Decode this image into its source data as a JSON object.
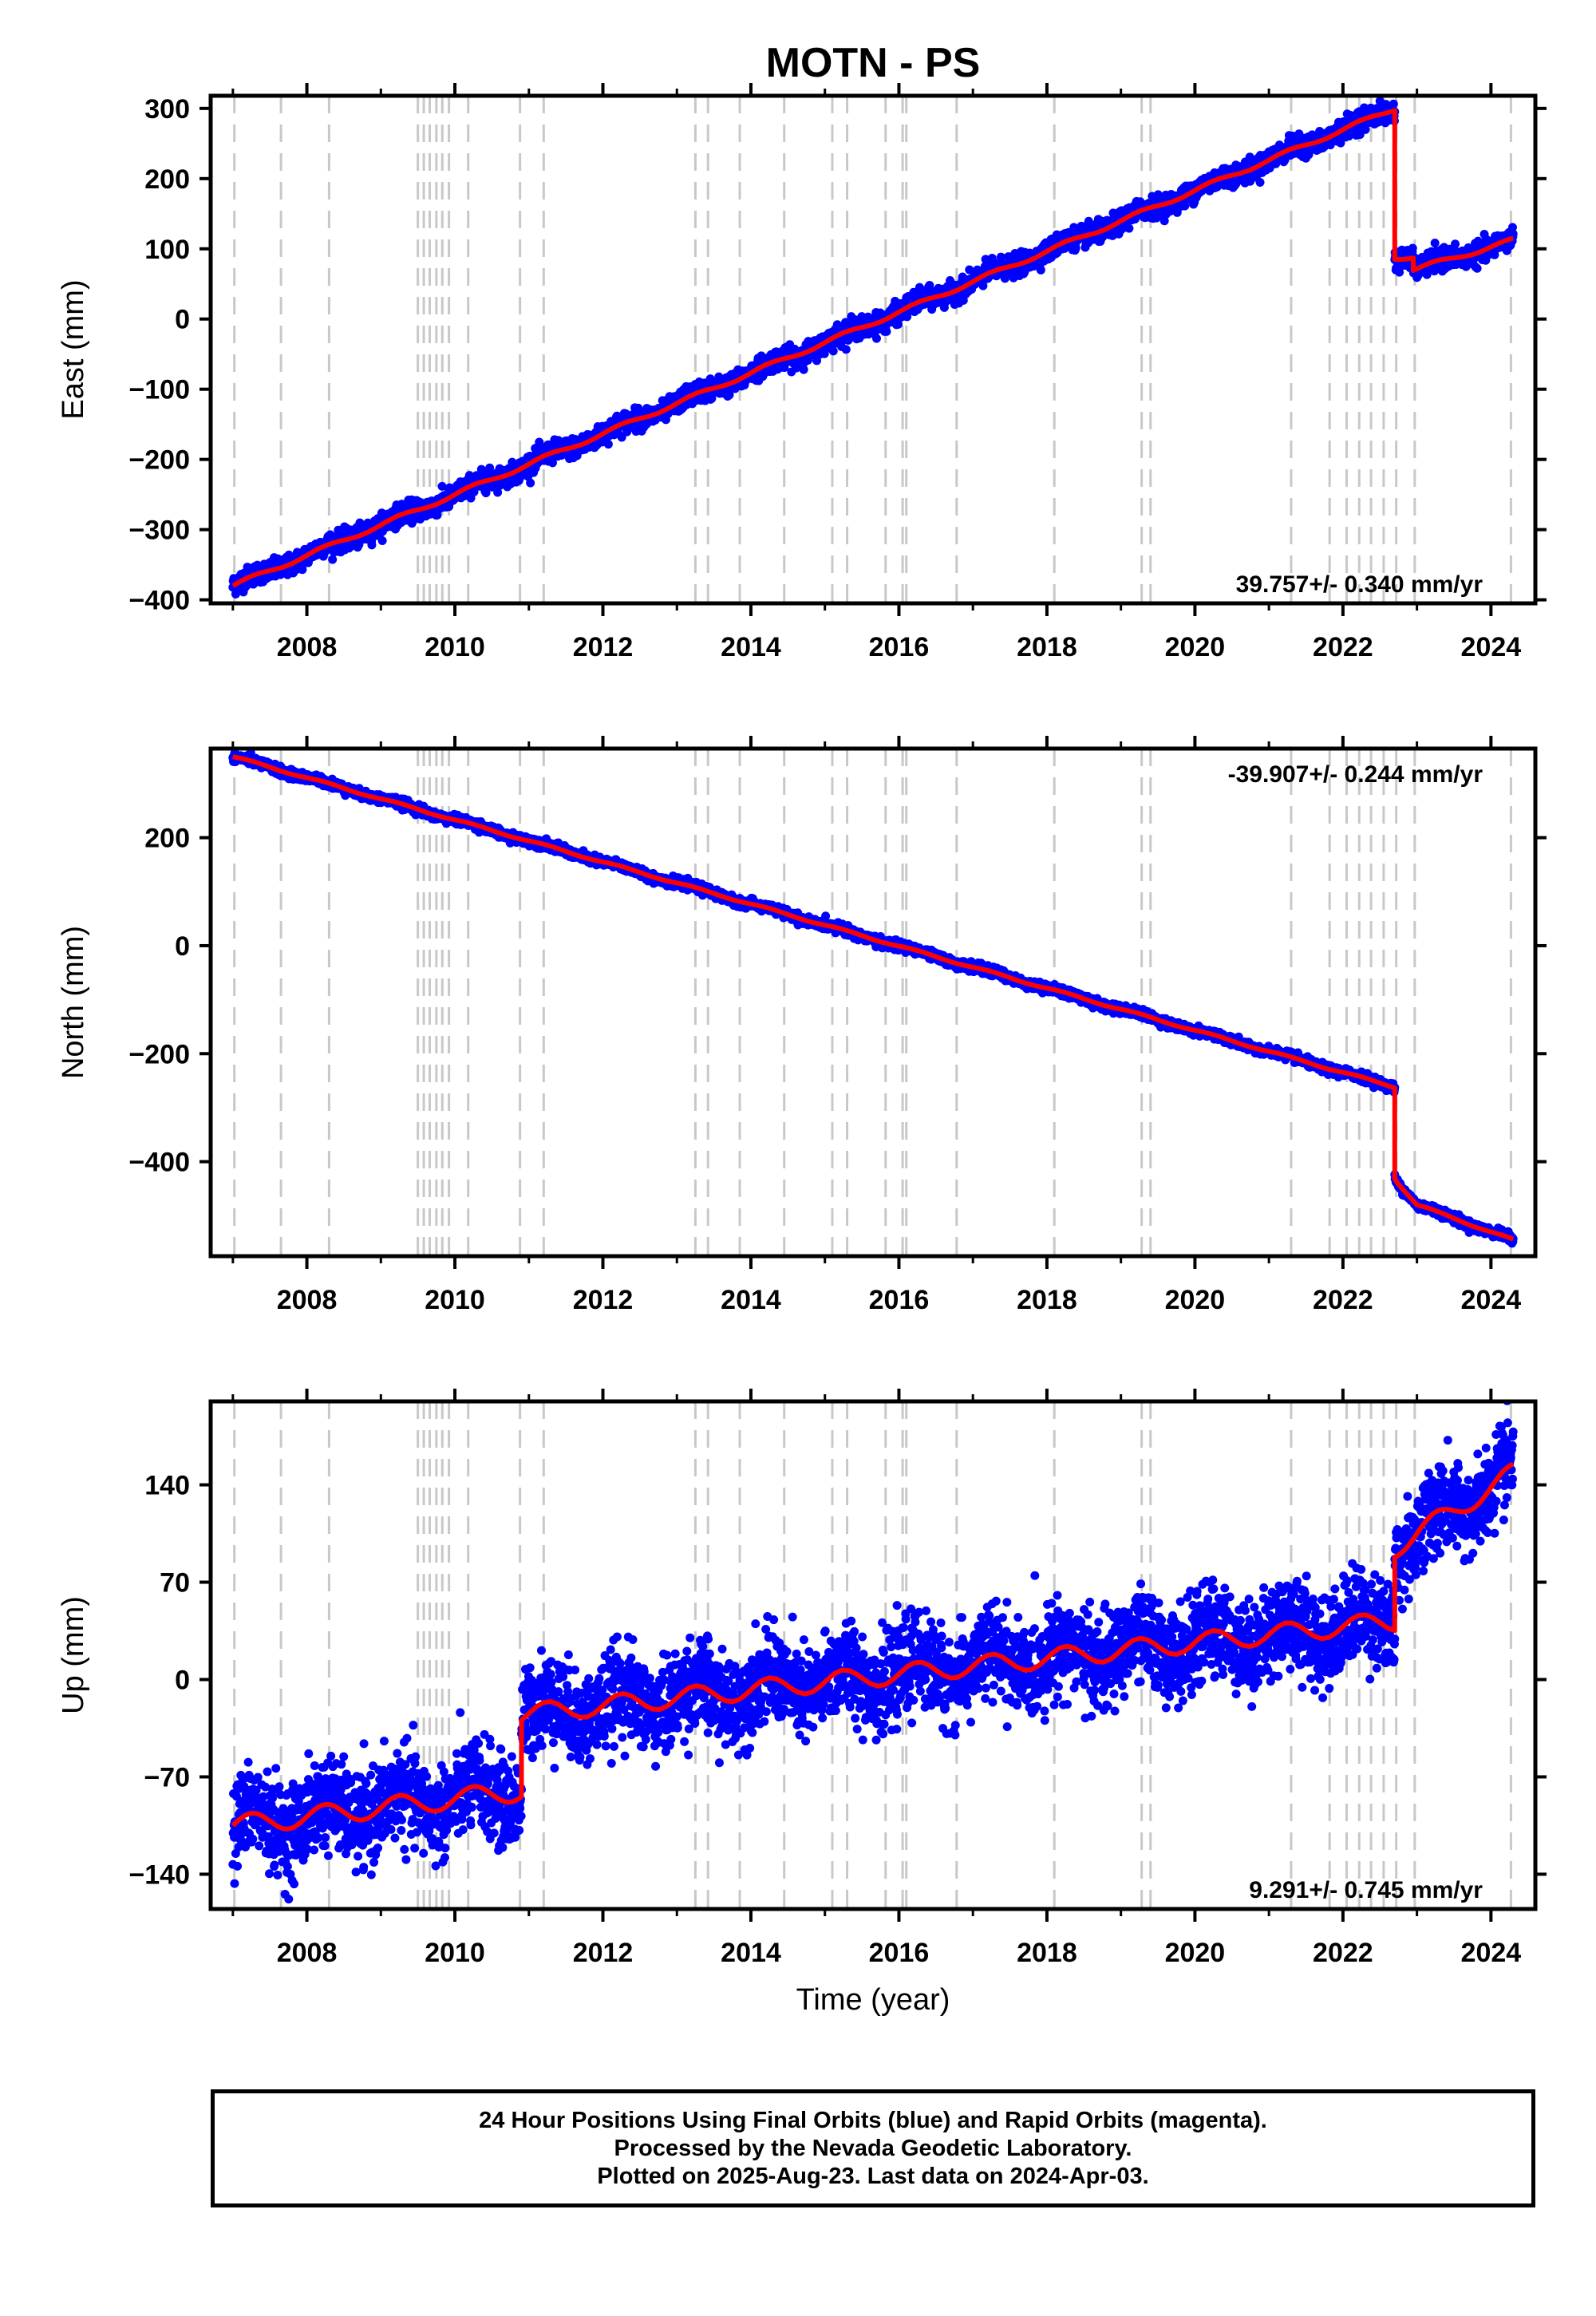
{
  "title": "MOTN - PS",
  "xlabel": "Time (year)",
  "colors": {
    "points": "#0000ff",
    "model": "#ff0000",
    "events": "#c8c8c8",
    "axis": "#000000"
  },
  "chart_data": [
    {
      "type": "scatter",
      "ylabel": "East (mm)",
      "rate_label": "39.757+/- 0.340 mm/yr",
      "xlim": [
        2006.7,
        2024.6
      ],
      "ylim": [
        -405,
        318
      ],
      "yticks": [
        300,
        200,
        100,
        0,
        -100,
        -200,
        -300,
        -400
      ],
      "yticklabels": [
        "300",
        "200",
        "100",
        "0",
        "−100",
        "−200",
        "−300",
        "−400"
      ],
      "xticks": [
        2008,
        2010,
        2012,
        2014,
        2016,
        2018,
        2020,
        2022,
        2024
      ],
      "xticklabels": [
        "2008",
        "2010",
        "2012",
        "2014",
        "2016",
        "2018",
        "2020",
        "2022",
        "2024"
      ],
      "model_breaks": [
        {
          "x": [
            2007.0,
            2022.7
          ],
          "y": [
            -380,
            300
          ]
        },
        {
          "x": [
            2022.7,
            2022.95
          ],
          "y": [
            88,
            88
          ]
        },
        {
          "x": [
            2022.95,
            2024.3
          ],
          "y": [
            70,
            112
          ]
        }
      ],
      "scatter_noise": 7
    },
    {
      "type": "scatter",
      "ylabel": "North (mm)",
      "rate_label": "-39.907+/- 0.244 mm/yr",
      "xlim": [
        2006.7,
        2024.6
      ],
      "ylim": [
        -575,
        365
      ],
      "yticks": [
        200,
        0,
        -200,
        -400
      ],
      "yticklabels": [
        "200",
        "0",
        "−200",
        "−400"
      ],
      "xticks": [
        2008,
        2010,
        2012,
        2014,
        2016,
        2018,
        2020,
        2022,
        2024
      ],
      "xticklabels": [
        "2008",
        "2010",
        "2012",
        "2014",
        "2016",
        "2018",
        "2020",
        "2022",
        "2024"
      ],
      "model_breaks": [
        {
          "x": [
            2007.0,
            2022.7
          ],
          "y": [
            350,
            -262
          ]
        },
        {
          "x": [
            2022.7,
            2022.75
          ],
          "y": [
            -430,
            -440
          ]
        },
        {
          "x": [
            2022.75,
            2023.0
          ],
          "y": [
            -440,
            -480
          ]
        },
        {
          "x": [
            2023.0,
            2024.3
          ],
          "y": [
            -480,
            -545
          ]
        }
      ],
      "scatter_noise": 4
    },
    {
      "type": "scatter",
      "ylabel": "Up (mm)",
      "rate_label": "9.291+/- 0.745 mm/yr",
      "xlim": [
        2006.7,
        2024.6
      ],
      "ylim": [
        -165,
        200
      ],
      "yticks": [
        140,
        70,
        0,
        -70,
        -140
      ],
      "yticklabels": [
        "140",
        "70",
        "0",
        "−70",
        "−140"
      ],
      "xticks": [
        2008,
        2010,
        2012,
        2014,
        2016,
        2018,
        2020,
        2022,
        2024
      ],
      "xticklabels": [
        "2008",
        "2010",
        "2012",
        "2014",
        "2016",
        "2018",
        "2020",
        "2022",
        "2024"
      ],
      "model_breaks": [
        {
          "x": [
            2007.0,
            2010.9
          ],
          "y": [
            -105,
            -80
          ]
        },
        {
          "x": [
            2010.9,
            2022.7
          ],
          "y": [
            -25,
            42
          ]
        },
        {
          "x": [
            2022.7,
            2024.3
          ],
          "y": [
            95,
            148
          ]
        }
      ],
      "scatter_noise": 16
    }
  ],
  "event_lines": [
    2007.02,
    2007.65,
    2008.3,
    2009.5,
    2009.58,
    2009.66,
    2009.75,
    2009.83,
    2009.92,
    2010.18,
    2010.88,
    2011.2,
    2013.25,
    2013.42,
    2013.85,
    2014.45,
    2015.1,
    2015.3,
    2015.82,
    2016.05,
    2016.1,
    2016.78,
    2018.1,
    2019.28,
    2019.4,
    2021.3,
    2021.82,
    2022.05,
    2022.22,
    2022.38,
    2022.55,
    2022.72,
    2022.97,
    2024.27
  ],
  "footer": {
    "line1": "24 Hour Positions Using Final Orbits (blue) and Rapid Orbits (magenta).",
    "line2": "Processed by the Nevada Geodetic Laboratory.",
    "line3": "Plotted on 2025-Aug-23. Last data on 2024-Apr-03."
  }
}
